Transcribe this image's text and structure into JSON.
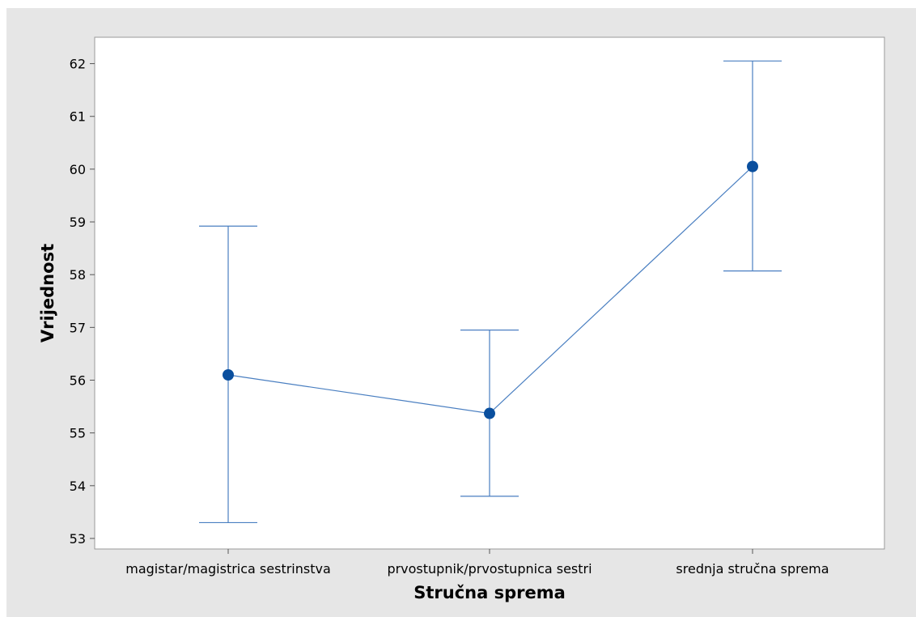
{
  "chart_data": {
    "type": "interval",
    "xlabel": "Stručna sprema",
    "ylabel": "Vrijednost",
    "categories": [
      "magistar/magistrica sestrinstva",
      "prvostupnik/prvostupnica sestri",
      "srednja stručna sprema"
    ],
    "means": [
      56.1,
      55.37,
      60.05
    ],
    "lower": [
      53.3,
      53.8,
      58.07
    ],
    "upper": [
      58.92,
      56.95,
      62.05
    ],
    "ylim": [
      52.8,
      62.5
    ],
    "yticks": [
      53,
      54,
      55,
      56,
      57,
      58,
      59,
      60,
      61,
      62
    ],
    "grid": false,
    "legend": "none",
    "colors": {
      "line": "#4a7fc1",
      "marker": "#0a4f9e",
      "outer_bg": "#e6e6e6",
      "plot_bg": "#ffffff"
    }
  }
}
